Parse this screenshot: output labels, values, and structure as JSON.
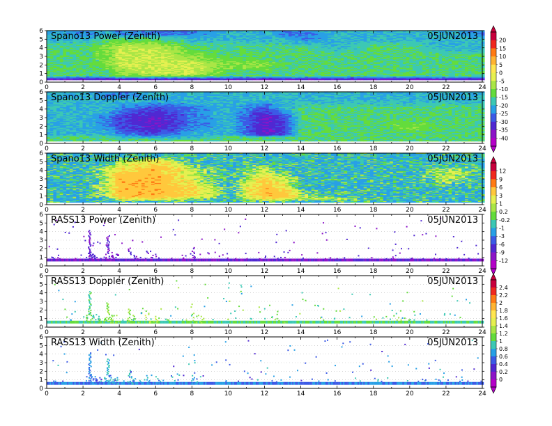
{
  "chart_data": [
    {
      "type": "heatmap",
      "title": "Spano13 Power (Zenith)",
      "date": "05JUN2013",
      "xlim": [
        0,
        24
      ],
      "ylim": [
        0,
        6
      ],
      "xticks": [
        "0",
        "2",
        "4",
        "6",
        "8",
        "10",
        "12",
        "14",
        "16",
        "18",
        "20",
        "22",
        "24"
      ],
      "yticks": [
        "0",
        "1",
        "2",
        "3",
        "4",
        "5",
        "6"
      ],
      "colorbar": "a",
      "x": [
        0,
        2,
        3.3,
        4,
        6,
        8,
        10,
        12,
        13,
        14,
        16,
        18,
        20,
        22,
        24
      ],
      "y": [
        0.3,
        0.7,
        1,
        2,
        3,
        4,
        5,
        5.6
      ],
      "values": [
        [
          -35,
          -35,
          -35,
          -35,
          -35,
          -35,
          -35,
          -35,
          -35,
          -35,
          -35,
          -35,
          -35,
          -35,
          -35
        ],
        [
          -15,
          -15,
          -15,
          -10,
          -10,
          -10,
          -15,
          -15,
          -15,
          -15,
          -15,
          -15,
          -15,
          -15,
          -15
        ],
        [
          -15,
          -15,
          -15,
          -10,
          -5,
          -5,
          -15,
          -15,
          -15,
          -15,
          -15,
          -15,
          -15,
          -15,
          -15
        ],
        [
          -15,
          -15,
          -10,
          -5,
          -5,
          -5,
          -10,
          -10,
          -15,
          -15,
          -15,
          -15,
          -15,
          -15,
          -15
        ],
        [
          -15,
          -15,
          -10,
          -5,
          -5,
          -10,
          -15,
          -15,
          -15,
          -15,
          -15,
          -15,
          -15,
          -15,
          -15
        ],
        [
          -15,
          -15,
          -10,
          -5,
          -5,
          -15,
          -15,
          -15,
          -15,
          -15,
          -20,
          -15,
          -15,
          -20,
          -20
        ],
        [
          -20,
          -20,
          -15,
          -15,
          -15,
          -20,
          -20,
          -20,
          -20,
          -25,
          -20,
          -20,
          -20,
          -20,
          -20
        ],
        [
          -20,
          -25,
          -20,
          -25,
          -25,
          -25,
          -20,
          -20,
          -25,
          -25,
          -20,
          -20,
          -20,
          -20,
          -25
        ]
      ]
    },
    {
      "type": "heatmap",
      "title": "Spano13 Doppler (Zenith)",
      "date": "05JUN2013",
      "xlim": [
        0,
        24
      ],
      "ylim": [
        0,
        6
      ],
      "xticks": [
        "0",
        "2",
        "4",
        "6",
        "8",
        "10",
        "12",
        "14",
        "16",
        "18",
        "20",
        "22",
        "24"
      ],
      "yticks": [
        "0",
        "1",
        "2",
        "3",
        "4",
        "5",
        "6"
      ],
      "colorbar": "a",
      "x": [
        0,
        2,
        3.3,
        4,
        6,
        8,
        10,
        12,
        13,
        14,
        16,
        18,
        20,
        22,
        24
      ],
      "y": [
        0.3,
        0.7,
        1,
        2,
        3,
        4,
        5,
        5.6
      ],
      "values": [
        [
          -15,
          -15,
          -15,
          -15,
          -15,
          -15,
          -15,
          -15,
          -15,
          -15,
          -15,
          -15,
          -15,
          -15,
          -15
        ],
        [
          -15,
          -15,
          -15,
          -20,
          -20,
          -20,
          -15,
          -15,
          -15,
          -15,
          -15,
          -15,
          -15,
          -15,
          -15
        ],
        [
          -20,
          -20,
          -20,
          -25,
          -30,
          -20,
          -20,
          -35,
          -30,
          -15,
          -15,
          -15,
          -15,
          -15,
          -15
        ],
        [
          -20,
          -20,
          -25,
          -30,
          -35,
          -25,
          -20,
          -35,
          -30,
          -15,
          -15,
          -15,
          -10,
          -15,
          -15
        ],
        [
          -20,
          -20,
          -25,
          -30,
          -35,
          -25,
          -20,
          -35,
          -30,
          -15,
          -15,
          -15,
          -15,
          -15,
          -15
        ],
        [
          -20,
          -20,
          -20,
          -25,
          -30,
          -25,
          -20,
          -30,
          -20,
          -15,
          -15,
          -15,
          -15,
          -15,
          -15
        ],
        [
          -20,
          -20,
          -20,
          -20,
          -20,
          -20,
          -20,
          -20,
          -20,
          -20,
          -20,
          -20,
          -20,
          -20,
          -20
        ],
        [
          -20,
          -20,
          -25,
          -25,
          -20,
          -20,
          -20,
          -20,
          -20,
          -20,
          -20,
          -20,
          -20,
          -20,
          -20
        ]
      ]
    },
    {
      "type": "heatmap",
      "title": "Spano13 Width (Zenith)",
      "date": "05JUN2013",
      "xlim": [
        0,
        24
      ],
      "ylim": [
        0,
        6
      ],
      "xticks": [
        "0",
        "2",
        "4",
        "6",
        "8",
        "10",
        "12",
        "14",
        "16",
        "18",
        "20",
        "22",
        "24"
      ],
      "yticks": [
        "0",
        "1",
        "2",
        "3",
        "4",
        "5",
        "6"
      ],
      "colorbar": "b",
      "x": [
        0,
        2,
        3.3,
        4,
        6,
        8,
        10,
        12,
        13,
        14,
        16,
        18,
        20,
        22,
        24
      ],
      "y": [
        0.3,
        0.7,
        1,
        2,
        3,
        4,
        5,
        5.6
      ],
      "values": [
        [
          -1,
          -1,
          -1,
          -1,
          -1,
          -1,
          -1,
          -1,
          -1,
          -1,
          -1,
          -1,
          -1,
          -1,
          -1
        ],
        [
          -1,
          -1,
          -1,
          3,
          3,
          1,
          -1,
          3,
          3,
          1,
          1,
          -1,
          -1,
          -1,
          -1
        ],
        [
          -1,
          -1,
          1,
          5,
          5,
          3,
          -1,
          5,
          5,
          1,
          -1,
          -1,
          -1,
          -1,
          -1
        ],
        [
          -1,
          -1,
          1,
          5,
          5,
          3,
          -1,
          5,
          3,
          -1,
          -1,
          -1,
          -1,
          -1,
          -1
        ],
        [
          -1,
          -1,
          1,
          5,
          5,
          1,
          -1,
          3,
          1,
          -1,
          -1,
          -1,
          -1,
          1,
          -1
        ],
        [
          -1,
          -1,
          1,
          3,
          5,
          1,
          -1,
          1,
          -1,
          -1,
          -1,
          -1,
          -1,
          1,
          -1
        ],
        [
          -1,
          -1,
          -1,
          1,
          3,
          -1,
          -1,
          -1,
          -1,
          -1,
          -1,
          -1,
          -1,
          -1,
          -1
        ],
        [
          -1,
          -1,
          -1,
          -1,
          -1,
          -1,
          -1,
          -1,
          -1,
          -1,
          -1,
          -1,
          -1,
          -1,
          -1
        ]
      ]
    },
    {
      "type": "scatter",
      "title": "RASS13 Power (Zenith)",
      "date": "05JUN2013",
      "xlim": [
        0,
        24
      ],
      "ylim": [
        0,
        6
      ],
      "xticks": [
        "0",
        "2",
        "4",
        "6",
        "8",
        "10",
        "12",
        "14",
        "16",
        "18",
        "20",
        "22",
        "24"
      ],
      "yticks": [
        "0",
        "1",
        "2",
        "3",
        "4",
        "5",
        "6"
      ],
      "colorbar": "b",
      "baseline_y": 0.7,
      "baseline_value": -9,
      "spikes": [
        {
          "x": 2.3,
          "top": 4.3,
          "value": -9
        },
        {
          "x": 3.3,
          "top": 3.6,
          "value": -9
        },
        {
          "x": 4.5,
          "top": 2.2,
          "value": -9
        },
        {
          "x": 5.5,
          "top": 1.8,
          "value": -9
        },
        {
          "x": 8.0,
          "top": 1.8,
          "value": -9
        },
        {
          "x": 12.5,
          "top": 1.2,
          "value": -9
        }
      ]
    },
    {
      "type": "scatter",
      "title": "RASS13 Doppler (Zenith)",
      "date": "05JUN2013",
      "xlim": [
        0,
        24
      ],
      "ylim": [
        0,
        6
      ],
      "xticks": [
        "0",
        "2",
        "4",
        "6",
        "8",
        "10",
        "12",
        "14",
        "16",
        "18",
        "20",
        "22",
        "24"
      ],
      "yticks": [
        "0",
        "1",
        "2",
        "3",
        "4",
        "5",
        "6"
      ],
      "colorbar": "c",
      "baseline_y": 0.6,
      "baseline_value": 1.0,
      "spikes": [
        {
          "x": 2.3,
          "top": 4.3,
          "value": 1.0
        },
        {
          "x": 3.3,
          "top": 3.0,
          "value": 1.2
        },
        {
          "x": 4.5,
          "top": 2.2,
          "value": 1.2
        },
        {
          "x": 5.5,
          "top": 1.8,
          "value": 1.4
        },
        {
          "x": 8.0,
          "top": 1.7,
          "value": 1.2
        },
        {
          "x": 12.5,
          "top": 1.0,
          "value": 1.2
        }
      ]
    },
    {
      "type": "scatter",
      "title": "RASS13 Width (Zenith)",
      "date": "05JUN2013",
      "xlim": [
        0,
        24
      ],
      "ylim": [
        0,
        6
      ],
      "xticks": [
        "0",
        "2",
        "4",
        "6",
        "8",
        "10",
        "12",
        "14",
        "16",
        "18",
        "20",
        "22",
        "24"
      ],
      "yticks": [
        "0",
        "1",
        "2",
        "3",
        "4",
        "5",
        "6"
      ],
      "colorbar": "c",
      "baseline_y": 0.6,
      "baseline_value": 0.6,
      "spikes": [
        {
          "x": 2.3,
          "top": 4.3,
          "value": 0.6
        },
        {
          "x": 3.3,
          "top": 3.5,
          "value": 0.8
        },
        {
          "x": 4.5,
          "top": 2.2,
          "value": 0.8
        },
        {
          "x": 5.5,
          "top": 1.6,
          "value": 0.8
        },
        {
          "x": 8.0,
          "top": 1.6,
          "value": 0.8
        },
        {
          "x": 12.5,
          "top": 1.0,
          "value": 0.6
        }
      ]
    }
  ],
  "colorbars": {
    "a": {
      "labels": [
        "20",
        "15",
        "10",
        "5",
        "0",
        "-5",
        "-10",
        "-15",
        "-20",
        "-25",
        "-30",
        "-35",
        "-40"
      ],
      "colors": [
        "#c8003c",
        "#f0281e",
        "#ff7a14",
        "#ffb432",
        "#ffe650",
        "#e6f050",
        "#aae646",
        "#64dc3c",
        "#3cc8b4",
        "#28a0e6",
        "#3c5ae6",
        "#5028d2",
        "#8c14c8",
        "#b400c8"
      ]
    },
    "b": {
      "labels": [
        "12",
        "9",
        "6",
        "3",
        "1",
        "0.2",
        "-0.2",
        "-1",
        "-3",
        "-6",
        "-9",
        "-12"
      ],
      "colors": [
        "#c8003c",
        "#f0281e",
        "#ff7a14",
        "#ffc83c",
        "#e6f050",
        "#aae646",
        "#64dc3c",
        "#3cc8b4",
        "#28a0e6",
        "#3c5ae6",
        "#5028d2",
        "#8c14c8",
        "#b400c8"
      ]
    },
    "c": {
      "labels": [
        "2.4",
        "2.2",
        "2",
        "1.8",
        "1.6",
        "1.4",
        "1.2",
        "1",
        "0.8",
        "0.6",
        "0.4",
        "0.2",
        "0"
      ],
      "colors": [
        "#c8003c",
        "#f0281e",
        "#ff7a14",
        "#ffb432",
        "#ffe650",
        "#e6f050",
        "#aae646",
        "#64dc3c",
        "#3cc8b4",
        "#28a0e6",
        "#3c5ae6",
        "#5028d2",
        "#8c14c8",
        "#b400c8"
      ]
    }
  }
}
